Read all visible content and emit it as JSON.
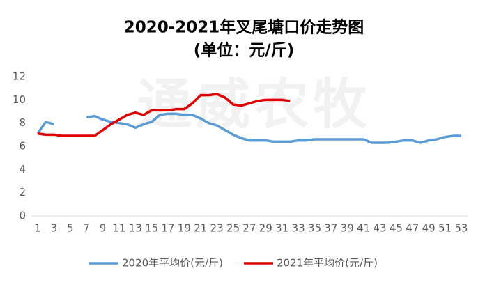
{
  "chart_data": {
    "type": "line",
    "title": "2020-2021年叉尾塘口价走势图",
    "subtitle": "(单位：元/斤)",
    "watermark": "通威农牧",
    "categories": [
      "1",
      null,
      "3",
      null,
      "5",
      null,
      "7",
      null,
      "9",
      null,
      "11",
      null,
      "13",
      null,
      "15",
      null,
      "17",
      null,
      "19",
      null,
      "21",
      null,
      "23",
      null,
      "25",
      null,
      "27",
      null,
      "29",
      null,
      "31",
      null,
      "33",
      null,
      "35",
      null,
      "37",
      null,
      "39",
      null,
      "41",
      null,
      "43",
      null,
      "45",
      null,
      "47",
      null,
      "49",
      null,
      "51",
      null,
      "53"
    ],
    "ylim": [
      0,
      12
    ],
    "yticks": [
      0,
      2,
      4,
      6,
      8,
      10,
      12
    ],
    "grid": false,
    "legend": "bottom",
    "series": [
      {
        "name": "2020年平均价(元/斤)",
        "color": "#5b9bd5",
        "values": [
          7.1,
          8.1,
          7.9,
          null,
          null,
          null,
          8.5,
          8.6,
          8.3,
          8.1,
          8.0,
          7.9,
          7.6,
          7.9,
          8.1,
          8.7,
          8.8,
          8.8,
          8.7,
          8.7,
          8.4,
          8.0,
          7.8,
          7.4,
          7.0,
          6.7,
          6.5,
          6.5,
          6.5,
          6.4,
          6.4,
          6.4,
          6.5,
          6.5,
          6.6,
          6.6,
          6.6,
          6.6,
          6.6,
          6.6,
          6.6,
          6.3,
          6.3,
          6.3,
          6.4,
          6.5,
          6.5,
          6.3,
          6.5,
          6.6,
          6.8,
          6.9,
          6.9
        ]
      },
      {
        "name": "2021年平均价(元/斤)",
        "color": "#e00000",
        "values": [
          7.1,
          7.0,
          7.0,
          6.9,
          6.9,
          6.9,
          6.9,
          6.9,
          7.4,
          7.9,
          8.3,
          8.7,
          8.9,
          8.7,
          9.1,
          9.1,
          9.1,
          9.2,
          9.2,
          9.7,
          10.4,
          10.4,
          10.5,
          10.2,
          9.6,
          9.5,
          9.7,
          9.9,
          10.0,
          10.0,
          10.0,
          9.9,
          null,
          null,
          null,
          null,
          null,
          null,
          null,
          null,
          null,
          null,
          null,
          null,
          null,
          null,
          null,
          null,
          null,
          null,
          null,
          null,
          null
        ]
      }
    ]
  }
}
